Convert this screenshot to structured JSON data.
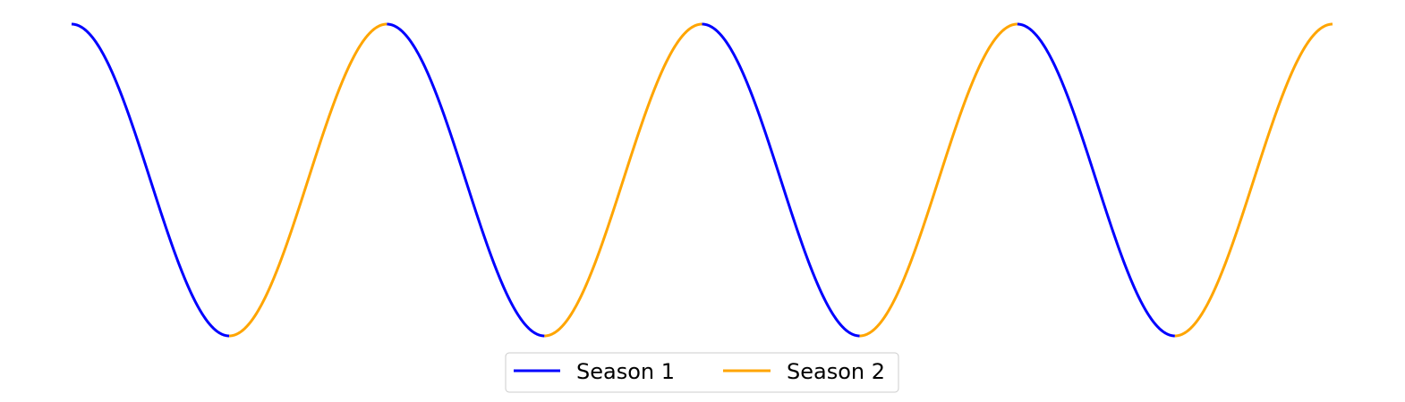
{
  "chart_data": {
    "type": "line",
    "title": "",
    "xlabel": "",
    "ylabel": "",
    "axes_visible": false,
    "grid": false,
    "legend_position": "bottom-center",
    "legend_columns": 2,
    "xlim": [
      0,
      16
    ],
    "ylim": [
      -1,
      1
    ],
    "function": "cos(pi * x / 2)",
    "season_period": 2,
    "series": [
      {
        "name": "Season 1",
        "color": "#0000ff",
        "segments": [
          [
            0,
            2
          ],
          [
            4,
            6
          ],
          [
            8,
            10
          ],
          [
            12,
            14
          ]
        ]
      },
      {
        "name": "Season 2",
        "color": "#ffa500",
        "segments": [
          [
            2,
            4
          ],
          [
            6,
            8
          ],
          [
            10,
            12
          ],
          [
            14,
            16
          ]
        ]
      }
    ]
  }
}
